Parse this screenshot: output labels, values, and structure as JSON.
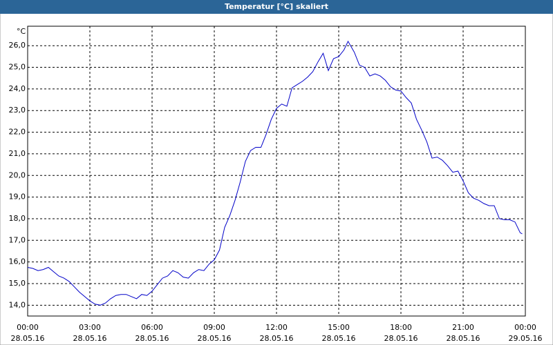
{
  "chart_data": {
    "type": "line",
    "title": "Temperatur [°C] skaliert",
    "y_unit": "°C",
    "x": [
      0,
      0.25,
      0.5,
      0.75,
      1,
      1.25,
      1.5,
      1.75,
      2,
      2.25,
      2.5,
      2.75,
      3,
      3.25,
      3.5,
      3.75,
      4,
      4.25,
      4.5,
      4.75,
      5,
      5.25,
      5.5,
      5.75,
      6,
      6.25,
      6.5,
      6.75,
      7,
      7.25,
      7.5,
      7.75,
      8,
      8.25,
      8.5,
      8.75,
      9,
      9.25,
      9.5,
      9.75,
      10,
      10.25,
      10.5,
      10.75,
      11,
      11.25,
      11.5,
      11.75,
      12,
      12.25,
      12.5,
      12.75,
      13,
      13.25,
      13.5,
      13.75,
      14,
      14.25,
      14.5,
      14.75,
      15,
      15.25,
      15.45,
      15.75,
      16,
      16.25,
      16.5,
      16.75,
      17,
      17.25,
      17.5,
      17.75,
      18,
      18.25,
      18.5,
      18.75,
      19,
      19.25,
      19.5,
      19.75,
      20,
      20.25,
      20.5,
      20.75,
      21,
      21.25,
      21.5,
      21.75,
      22,
      22.25,
      22.5,
      22.75,
      23,
      23.25,
      23.5,
      23.75,
      23.85
    ],
    "series": [
      {
        "name": "Temperatur",
        "color": "#0000c8",
        "values": [
          15.75,
          15.7,
          15.6,
          15.65,
          15.75,
          15.55,
          15.35,
          15.25,
          15.1,
          14.85,
          14.6,
          14.4,
          14.2,
          14.05,
          14.0,
          14.1,
          14.3,
          14.45,
          14.5,
          14.5,
          14.4,
          14.3,
          14.5,
          14.45,
          14.65,
          14.95,
          15.25,
          15.35,
          15.6,
          15.5,
          15.3,
          15.25,
          15.5,
          15.65,
          15.6,
          15.9,
          16.1,
          16.55,
          17.6,
          18.15,
          18.85,
          19.7,
          20.65,
          21.15,
          21.3,
          21.3,
          21.9,
          22.6,
          23.1,
          23.3,
          23.2,
          24.05,
          24.2,
          24.35,
          24.55,
          24.8,
          25.25,
          25.65,
          24.85,
          25.4,
          25.5,
          25.8,
          26.2,
          25.7,
          25.1,
          25.0,
          24.6,
          24.7,
          24.6,
          24.4,
          24.1,
          23.95,
          23.9,
          23.6,
          23.35,
          22.6,
          22.1,
          21.55,
          20.8,
          20.85,
          20.7,
          20.45,
          20.15,
          20.2,
          19.75,
          19.2,
          18.95,
          18.85,
          18.7,
          18.6,
          18.6,
          18.0,
          17.95,
          17.95,
          17.85,
          17.35,
          17.3
        ]
      }
    ],
    "xlim": [
      0,
      24
    ],
    "xticks": [
      {
        "value": 0,
        "label": "00:00",
        "date": "28.05.16"
      },
      {
        "value": 3,
        "label": "03:00",
        "date": "28.05.16"
      },
      {
        "value": 6,
        "label": "06:00",
        "date": "28.05.16"
      },
      {
        "value": 9,
        "label": "09:00",
        "date": "28.05.16"
      },
      {
        "value": 12,
        "label": "12:00",
        "date": "28.05.16"
      },
      {
        "value": 15,
        "label": "15:00",
        "date": "28.05.16"
      },
      {
        "value": 18,
        "label": "18:00",
        "date": "28.05.16"
      },
      {
        "value": 21,
        "label": "21:00",
        "date": "28.05.16"
      },
      {
        "value": 24,
        "label": "00:00",
        "date": "29.05.16"
      }
    ],
    "ylim": [
      13.5,
      26.9
    ],
    "yticks": [
      {
        "value": 14,
        "label": "14,0"
      },
      {
        "value": 15,
        "label": "15,0"
      },
      {
        "value": 16,
        "label": "16,0"
      },
      {
        "value": 17,
        "label": "17,0"
      },
      {
        "value": 18,
        "label": "18,0"
      },
      {
        "value": 19,
        "label": "19,0"
      },
      {
        "value": 20,
        "label": "20,0"
      },
      {
        "value": 21,
        "label": "21,0"
      },
      {
        "value": 22,
        "label": "22,0"
      },
      {
        "value": 23,
        "label": "23,0"
      },
      {
        "value": 24,
        "label": "24,0"
      },
      {
        "value": 25,
        "label": "25,0"
      },
      {
        "value": 26,
        "label": "26,0"
      }
    ],
    "grid": true
  }
}
